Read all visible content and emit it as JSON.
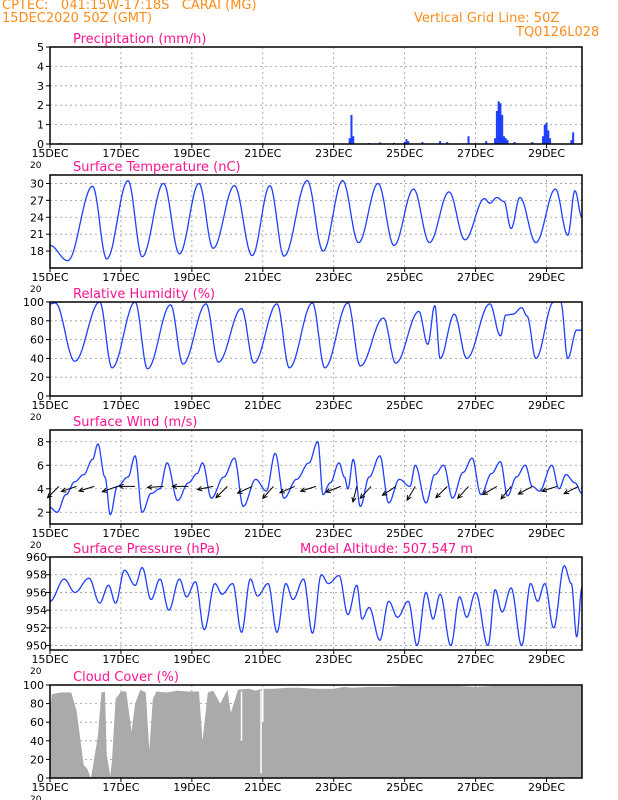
{
  "header": {
    "line1": "CPTEC:   041:15W-17:18S   CARAI (MG)",
    "line2": "15DEC2020 50Z (GMT)",
    "grid_note": "Vertical Grid Line: 50Z",
    "code": "TQ0126L028"
  },
  "colors": {
    "header": "#ff8c1a",
    "title": "#ff1493",
    "line": "#1f3fff",
    "bar": "#1f3fff",
    "cloud": "#aaaaaa",
    "wind": "#000000"
  },
  "x_tick_labels": [
    "15DEC",
    "17DEC",
    "19DEC",
    "21DEC",
    "23DEC",
    "25DEC",
    "27DEC",
    "29DEC"
  ],
  "x_tick_days": [
    15,
    17,
    19,
    21,
    23,
    25,
    27,
    29
  ],
  "x_range_days": [
    15,
    30
  ],
  "x_sub_label": "20",
  "chart_data": [
    {
      "type": "bar",
      "name": "precipitation",
      "title": "Precipitation (mm/h)",
      "ylim": [
        0,
        5
      ],
      "yticks": [
        0,
        1,
        2,
        3,
        4,
        5
      ],
      "x": [
        15.3,
        16.2,
        17.5,
        19.1,
        20.4,
        22.3,
        23.45,
        23.5,
        23.55,
        24.0,
        24.3,
        24.7,
        25.0,
        25.05,
        25.1,
        25.5,
        26.0,
        26.2,
        26.8,
        27.3,
        27.55,
        27.6,
        27.65,
        27.7,
        27.75,
        27.8,
        27.85,
        27.9,
        28.1,
        28.6,
        28.9,
        28.95,
        29.0,
        29.05,
        29.1,
        29.7,
        29.75
      ],
      "values": [
        0.05,
        0.03,
        0.04,
        0.03,
        0.02,
        0.03,
        0.3,
        1.5,
        0.4,
        0.05,
        0.08,
        0.06,
        0.1,
        0.25,
        0.15,
        0.1,
        0.15,
        0.1,
        0.4,
        0.15,
        0.3,
        1.7,
        2.2,
        2.1,
        1.5,
        0.4,
        0.3,
        0.2,
        0.1,
        0.1,
        0.4,
        1.0,
        1.1,
        0.7,
        0.3,
        0.2,
        0.6
      ]
    },
    {
      "type": "line",
      "name": "temperature",
      "title": "Surface Temperature (nC)",
      "ylim": [
        15,
        31.5
      ],
      "yticks": [
        18,
        21,
        24,
        27,
        30
      ],
      "extrema": [
        [
          15.0,
          19
        ],
        [
          15.5,
          16.3
        ],
        [
          16.2,
          29.5
        ],
        [
          16.6,
          16.6
        ],
        [
          17.2,
          30.5
        ],
        [
          17.6,
          17.0
        ],
        [
          18.2,
          30.0
        ],
        [
          18.65,
          17.5
        ],
        [
          19.2,
          30.0
        ],
        [
          19.6,
          18.5
        ],
        [
          20.2,
          29.6
        ],
        [
          20.7,
          17.2
        ],
        [
          21.2,
          29.6
        ],
        [
          21.6,
          17.1
        ],
        [
          22.25,
          30.5
        ],
        [
          22.7,
          18.0
        ],
        [
          23.25,
          30.5
        ],
        [
          23.7,
          19.5
        ],
        [
          24.25,
          30.0
        ],
        [
          24.7,
          19.0
        ],
        [
          25.25,
          29.0
        ],
        [
          25.7,
          19.5
        ],
        [
          26.25,
          28.5
        ],
        [
          26.7,
          20.0
        ],
        [
          27.25,
          27.3
        ],
        [
          27.4,
          26.5
        ],
        [
          27.6,
          27.5
        ],
        [
          27.8,
          26.8
        ],
        [
          28.0,
          22.0
        ],
        [
          28.25,
          27.5
        ],
        [
          28.7,
          19.5
        ],
        [
          29.25,
          29.0
        ],
        [
          29.6,
          20.8
        ],
        [
          29.8,
          28.7
        ],
        [
          30.0,
          24.0
        ]
      ]
    },
    {
      "type": "line",
      "name": "humidity",
      "title": "Relative Humidity (%)",
      "ylim": [
        0,
        100
      ],
      "yticks": [
        0,
        20,
        40,
        60,
        80,
        100
      ],
      "extrema": [
        [
          15.0,
          98
        ],
        [
          15.15,
          99
        ],
        [
          15.7,
          37
        ],
        [
          16.4,
          100
        ],
        [
          16.75,
          30
        ],
        [
          17.4,
          100
        ],
        [
          17.75,
          29
        ],
        [
          18.4,
          97
        ],
        [
          18.75,
          34
        ],
        [
          19.4,
          98
        ],
        [
          19.75,
          36
        ],
        [
          20.4,
          93
        ],
        [
          20.75,
          35
        ],
        [
          21.4,
          98
        ],
        [
          21.75,
          30
        ],
        [
          22.4,
          99
        ],
        [
          22.75,
          30
        ],
        [
          23.4,
          99
        ],
        [
          23.75,
          32
        ],
        [
          24.4,
          83
        ],
        [
          24.75,
          35
        ],
        [
          25.4,
          90
        ],
        [
          25.65,
          55
        ],
        [
          25.85,
          96
        ],
        [
          26.0,
          40
        ],
        [
          26.4,
          87
        ],
        [
          26.75,
          40
        ],
        [
          27.4,
          98
        ],
        [
          27.7,
          64
        ],
        [
          27.85,
          86
        ],
        [
          28.05,
          87
        ],
        [
          28.3,
          94
        ],
        [
          28.45,
          85
        ],
        [
          28.7,
          40
        ],
        [
          29.2,
          100
        ],
        [
          29.4,
          100
        ],
        [
          29.6,
          40
        ],
        [
          29.85,
          70
        ],
        [
          30.0,
          70
        ]
      ]
    },
    {
      "type": "line",
      "name": "wind_speed",
      "title": "Surface Wind (m/s)",
      "ylim": [
        1,
        9
      ],
      "yticks": [
        2,
        4,
        6,
        8
      ],
      "extrema": [
        [
          15.0,
          2.4
        ],
        [
          15.2,
          2.0
        ],
        [
          15.45,
          3.5
        ],
        [
          15.7,
          4.6
        ],
        [
          15.95,
          5.2
        ],
        [
          16.2,
          6.5
        ],
        [
          16.35,
          7.8
        ],
        [
          16.55,
          5.0
        ],
        [
          16.7,
          1.8
        ],
        [
          16.9,
          4.2
        ],
        [
          17.2,
          5.0
        ],
        [
          17.4,
          6.8
        ],
        [
          17.6,
          2.0
        ],
        [
          17.85,
          3.6
        ],
        [
          18.1,
          4.0
        ],
        [
          18.3,
          6.2
        ],
        [
          18.6,
          3.0
        ],
        [
          18.9,
          4.5
        ],
        [
          19.15,
          5.3
        ],
        [
          19.3,
          6.2
        ],
        [
          19.55,
          3.2
        ],
        [
          19.9,
          5.0
        ],
        [
          20.2,
          6.6
        ],
        [
          20.45,
          2.5
        ],
        [
          20.8,
          4.8
        ],
        [
          21.1,
          3.8
        ],
        [
          21.35,
          7.0
        ],
        [
          21.6,
          3.2
        ],
        [
          21.95,
          4.8
        ],
        [
          22.3,
          6.2
        ],
        [
          22.55,
          8.0
        ],
        [
          22.7,
          3.5
        ],
        [
          22.9,
          4.5
        ],
        [
          23.15,
          6.2
        ],
        [
          23.3,
          5.0
        ],
        [
          23.4,
          4.0
        ],
        [
          23.55,
          6.5
        ],
        [
          23.75,
          2.5
        ],
        [
          24.0,
          5.0
        ],
        [
          24.3,
          6.8
        ],
        [
          24.55,
          2.8
        ],
        [
          24.85,
          4.8
        ],
        [
          25.15,
          4.2
        ],
        [
          25.3,
          6.0
        ],
        [
          25.6,
          2.8
        ],
        [
          25.85,
          5.2
        ],
        [
          26.1,
          6.0
        ],
        [
          26.35,
          3.2
        ],
        [
          26.65,
          5.4
        ],
        [
          26.9,
          6.6
        ],
        [
          27.15,
          3.5
        ],
        [
          27.45,
          5.3
        ],
        [
          27.7,
          6.3
        ],
        [
          27.9,
          3.4
        ],
        [
          28.15,
          5.0
        ],
        [
          28.4,
          6.0
        ],
        [
          28.6,
          4.2
        ],
        [
          28.8,
          3.8
        ],
        [
          29.15,
          6.0
        ],
        [
          29.35,
          4.0
        ],
        [
          29.55,
          5.2
        ],
        [
          29.8,
          4.5
        ],
        [
          30.0,
          3.6
        ]
      ],
      "arrows": [
        [
          15.25,
          -1,
          -1
        ],
        [
          15.75,
          -1.2,
          -0.4
        ],
        [
          16.25,
          -1,
          -0.3
        ],
        [
          16.9,
          -1.4,
          -0.5
        ],
        [
          17.4,
          -1.6,
          0
        ],
        [
          18.2,
          -1.5,
          -0.1
        ],
        [
          18.9,
          -1.4,
          0
        ],
        [
          19.6,
          -1.5,
          -0.3
        ],
        [
          20.0,
          -1,
          -1
        ],
        [
          20.7,
          -1.3,
          -0.6
        ],
        [
          21.3,
          -0.8,
          -0.9
        ],
        [
          21.9,
          -1.4,
          -0.6
        ],
        [
          22.5,
          -1.3,
          -0.4
        ],
        [
          23.2,
          -1.3,
          -0.5
        ],
        [
          23.65,
          -0.3,
          -1.2
        ],
        [
          24.05,
          -0.9,
          -1
        ],
        [
          24.75,
          -1.2,
          -0.8
        ],
        [
          25.3,
          -0.6,
          -1
        ],
        [
          26.2,
          -1,
          -1
        ],
        [
          26.8,
          -0.9,
          -1
        ],
        [
          27.6,
          -1.2,
          -0.7
        ],
        [
          28.0,
          -0.8,
          -1
        ],
        [
          28.6,
          -1.1,
          -0.6
        ],
        [
          29.3,
          -1.3,
          -0.4
        ],
        [
          29.9,
          -1,
          -0.5
        ]
      ]
    },
    {
      "type": "line",
      "name": "pressure",
      "title": "Surface Pressure (hPa)",
      "subtitle": "Model Altitude: 507.547  m",
      "ylim": [
        949.5,
        960
      ],
      "yticks": [
        950,
        952,
        954,
        956,
        958,
        960
      ],
      "extrema": [
        [
          15.0,
          955.0
        ],
        [
          15.4,
          957.5
        ],
        [
          15.7,
          956.0
        ],
        [
          16.1,
          957.6
        ],
        [
          16.4,
          954.8
        ],
        [
          16.65,
          956.8
        ],
        [
          16.85,
          954.8
        ],
        [
          17.1,
          958.5
        ],
        [
          17.4,
          956.8
        ],
        [
          17.6,
          958.8
        ],
        [
          17.85,
          955.2
        ],
        [
          18.1,
          957.5
        ],
        [
          18.35,
          954.0
        ],
        [
          18.65,
          957.5
        ],
        [
          18.85,
          955.5
        ],
        [
          19.1,
          957.2
        ],
        [
          19.35,
          951.8
        ],
        [
          19.65,
          957.0
        ],
        [
          19.85,
          955.8
        ],
        [
          20.15,
          957.0
        ],
        [
          20.4,
          951.5
        ],
        [
          20.65,
          957.5
        ],
        [
          20.85,
          955.6
        ],
        [
          21.15,
          957.0
        ],
        [
          21.4,
          951.5
        ],
        [
          21.65,
          957.0
        ],
        [
          21.85,
          955.2
        ],
        [
          22.15,
          957.5
        ],
        [
          22.4,
          951.4
        ],
        [
          22.65,
          958.0
        ],
        [
          22.85,
          957.0
        ],
        [
          23.15,
          957.9
        ],
        [
          23.4,
          953.5
        ],
        [
          23.65,
          956.8
        ],
        [
          23.8,
          953.0
        ],
        [
          24.0,
          954.3
        ],
        [
          24.3,
          950.6
        ],
        [
          24.55,
          955.0
        ],
        [
          24.8,
          953.2
        ],
        [
          25.1,
          955.0
        ],
        [
          25.35,
          950.0
        ],
        [
          25.6,
          956.0
        ],
        [
          25.8,
          953.0
        ],
        [
          26.0,
          955.8
        ],
        [
          26.3,
          950.0
        ],
        [
          26.55,
          955.5
        ],
        [
          26.75,
          953.2
        ],
        [
          27.0,
          956.0
        ],
        [
          27.35,
          950.0
        ],
        [
          27.55,
          956.3
        ],
        [
          27.75,
          953.8
        ],
        [
          28.0,
          956.5
        ],
        [
          28.3,
          950.0
        ],
        [
          28.55,
          957.0
        ],
        [
          28.75,
          955.0
        ],
        [
          28.95,
          957.0
        ],
        [
          29.2,
          952.0
        ],
        [
          29.5,
          959.0
        ],
        [
          29.7,
          957.0
        ],
        [
          29.85,
          951.0
        ],
        [
          30.0,
          956.5
        ]
      ]
    },
    {
      "type": "area",
      "name": "cloud_cover",
      "title": "Cloud Cover (%)",
      "ylim": [
        0,
        100
      ],
      "yticks": [
        0,
        20,
        40,
        60,
        80,
        100
      ],
      "x": [
        15.0,
        15.05,
        15.3,
        15.6,
        15.75,
        15.95,
        16.05,
        16.15,
        16.2,
        16.35,
        16.45,
        16.55,
        16.6,
        16.7,
        16.75,
        16.85,
        17.0,
        17.15,
        17.3,
        17.4,
        17.55,
        17.7,
        17.8,
        17.9,
        18.0,
        18.3,
        18.6,
        18.9,
        19.2,
        19.3,
        19.45,
        19.6,
        19.8,
        20.0,
        20.1,
        20.3,
        20.6,
        20.8,
        21.0,
        21.3,
        21.7,
        22.0,
        22.5,
        23.0,
        23.3,
        23.5,
        24.0,
        24.5,
        25.0,
        25.5,
        26.0,
        26.5,
        27.0,
        27.5,
        28.0,
        28.5,
        29.0,
        29.5,
        29.9,
        30.0
      ],
      "values": [
        70,
        90,
        92,
        92,
        72,
        14,
        10,
        0,
        10,
        45,
        92,
        93,
        25,
        2,
        20,
        85,
        93,
        93,
        50,
        80,
        95,
        92,
        30,
        85,
        93,
        92,
        94,
        93,
        93,
        40,
        92,
        94,
        80,
        95,
        70,
        95,
        96,
        94,
        96,
        96,
        97,
        97,
        96,
        96,
        98,
        97,
        98,
        98,
        99,
        99,
        99,
        99,
        98,
        99,
        99,
        99,
        99,
        99,
        99,
        99
      ],
      "dips": [
        [
          20.4,
          93,
          40
        ],
        [
          20.95,
          94,
          5
        ],
        [
          21.0,
          96,
          60
        ]
      ]
    }
  ]
}
